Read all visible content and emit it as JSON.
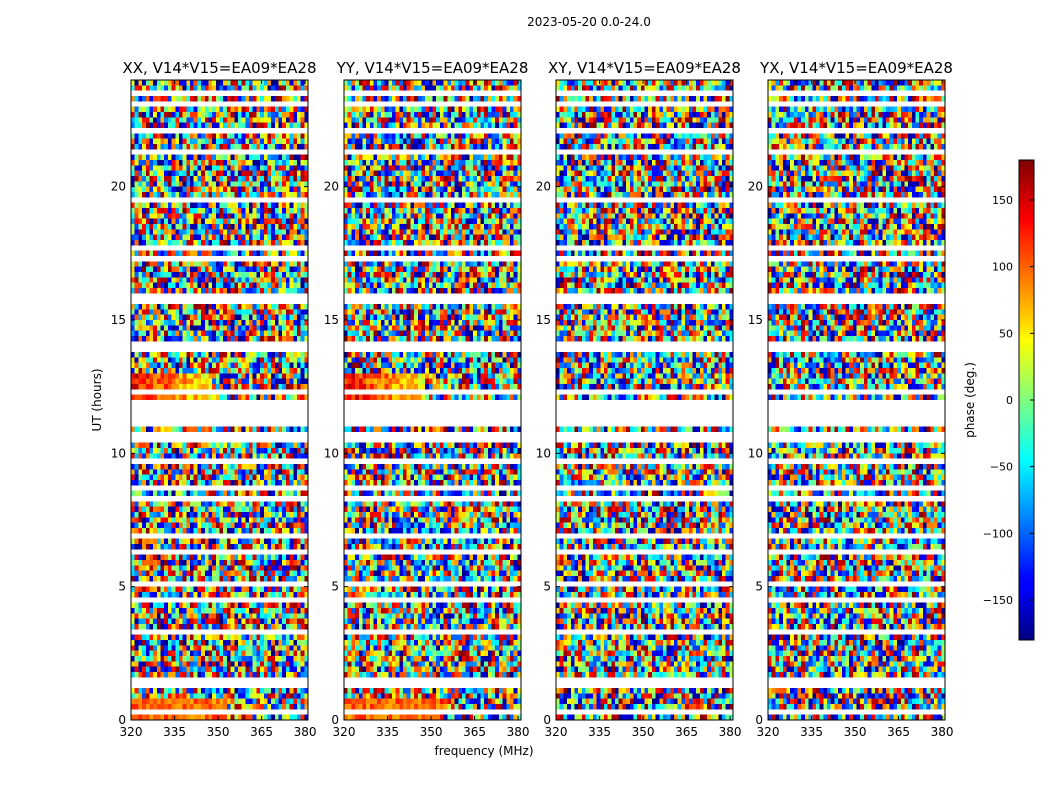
{
  "suptitle": "2023-05-20 0.0-24.0",
  "chart_data": {
    "type": "heatmap",
    "suptitle": "2023-05-20 0.0-24.0",
    "xlabel": "frequency (MHz)",
    "ylabel": "UT (hours)",
    "xlim": [
      320,
      381
    ],
    "ylim": [
      0,
      24
    ],
    "xticks": [
      320,
      335,
      350,
      365,
      380
    ],
    "yticks": [
      0,
      5,
      10,
      15,
      20
    ],
    "panels": [
      {
        "title": "XX, V14*V15=EA09*EA28",
        "coherent_blobs": true
      },
      {
        "title": "YY, V14*V15=EA09*EA28",
        "coherent_blobs": true
      },
      {
        "title": "XY, V14*V15=EA09*EA28",
        "coherent_blobs": false
      },
      {
        "title": "YX, V14*V15=EA09*EA28",
        "coherent_blobs": false
      }
    ],
    "flagged_ut_ranges": [
      [
        12.0,
        11.0
      ],
      [
        10.6,
        10.8
      ],
      [
        17.2,
        17.4
      ],
      [
        15.6,
        15.8
      ],
      [
        13.9,
        14.1
      ],
      [
        9.6,
        9.7
      ],
      [
        8.3,
        8.45
      ],
      [
        6.3,
        6.4
      ],
      [
        4.5,
        4.6
      ],
      [
        2.7,
        2.8
      ],
      [
        1.3,
        1.4
      ],
      [
        0.3,
        0.35
      ],
      [
        22.0,
        22.2
      ],
      [
        23.4,
        23.5
      ]
    ],
    "colorbar": {
      "label": "phase (deg.)",
      "range": [
        -180,
        180
      ],
      "ticks": [
        150,
        100,
        50,
        0,
        -50,
        -100,
        -150
      ],
      "tick_labels": [
        "150",
        "100",
        "50",
        "0",
        "−50",
        "−100",
        "−150"
      ]
    }
  }
}
